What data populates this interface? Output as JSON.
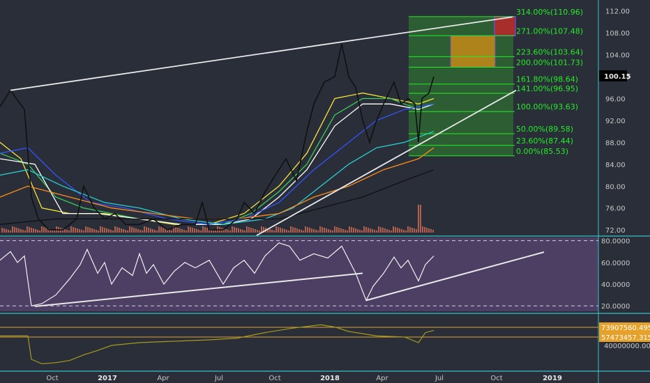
{
  "colors": {
    "background": "#2a2e39",
    "panel_border": "#36c2c8",
    "fib_green": "#22ee22",
    "rsi_fill": "#4c3f63",
    "volume": "#c56a55",
    "obv": "#a59b1e",
    "trendline": "#e9e9e9"
  },
  "chart_data": [
    {
      "type": "line",
      "panel": "price",
      "y_axis_ticks": [
        "112.00",
        "108.00",
        "104.00",
        "100.00",
        "96.00",
        "92.00",
        "88.00",
        "84.00",
        "80.00",
        "76.00",
        "72.00"
      ],
      "ylim": [
        71,
        114
      ],
      "last_price_label": "100.15",
      "fib_levels": [
        {
          "label": "314.00%(110.96)",
          "value": 110.96
        },
        {
          "label": "271.00%(107.48)",
          "value": 107.48
        },
        {
          "label": "223.60%(103.64)",
          "value": 103.64
        },
        {
          "label": "200.00%(101.73)",
          "value": 101.73
        },
        {
          "label": "161.80%(98.64)",
          "value": 98.64
        },
        {
          "label": "141.00%(96.95)",
          "value": 96.95
        },
        {
          "label": "100.00%(93.63)",
          "value": 93.63
        },
        {
          "label": "50.00%(89.58)",
          "value": 89.58
        },
        {
          "label": "23.60%(87.44)",
          "value": 87.44
        },
        {
          "label": "0.00%(85.53)",
          "value": 85.53
        }
      ],
      "price_path": [
        [
          0,
          94.5
        ],
        [
          15,
          97.5
        ],
        [
          35,
          94
        ],
        [
          45,
          78
        ],
        [
          55,
          74
        ],
        [
          70,
          72
        ],
        [
          90,
          72
        ],
        [
          110,
          74
        ],
        [
          120,
          80
        ],
        [
          135,
          76
        ],
        [
          150,
          74
        ],
        [
          165,
          75
        ],
        [
          180,
          73
        ],
        [
          200,
          73
        ],
        [
          220,
          74
        ],
        [
          240,
          72
        ],
        [
          260,
          73
        ],
        [
          280,
          73
        ],
        [
          290,
          77
        ],
        [
          300,
          72
        ],
        [
          320,
          72
        ],
        [
          340,
          74
        ],
        [
          350,
          77
        ],
        [
          365,
          75
        ],
        [
          380,
          79
        ],
        [
          395,
          82
        ],
        [
          410,
          85
        ],
        [
          425,
          81
        ],
        [
          440,
          90
        ],
        [
          450,
          95
        ],
        [
          465,
          99
        ],
        [
          480,
          100
        ],
        [
          490,
          106
        ],
        [
          500,
          100
        ],
        [
          510,
          98
        ],
        [
          520,
          92
        ],
        [
          530,
          88
        ],
        [
          540,
          92
        ],
        [
          550,
          95
        ],
        [
          565,
          99
        ],
        [
          575,
          95
        ],
        [
          585,
          96
        ],
        [
          595,
          95
        ],
        [
          600,
          88
        ],
        [
          605,
          96
        ],
        [
          615,
          97
        ],
        [
          622,
          100
        ]
      ],
      "moving_averages": [
        {
          "color": "#f5e53a",
          "path": [
            [
              0,
              88
            ],
            [
              30,
              85
            ],
            [
              60,
              76
            ],
            [
              100,
              75
            ],
            [
              150,
              75
            ],
            [
              200,
              74
            ],
            [
              250,
              73
            ],
            [
              300,
              73
            ],
            [
              350,
              75
            ],
            [
              400,
              80
            ],
            [
              440,
              86
            ],
            [
              480,
              96
            ],
            [
              520,
              97
            ],
            [
              560,
              96
            ],
            [
              600,
              95
            ],
            [
              622,
              96
            ]
          ]
        },
        {
          "color": "#3acd5a",
          "path": [
            [
              0,
              86
            ],
            [
              40,
              84
            ],
            [
              80,
              78
            ],
            [
              120,
              76
            ],
            [
              160,
              75
            ],
            [
              200,
              74
            ],
            [
              260,
              73
            ],
            [
              320,
              73
            ],
            [
              360,
              75
            ],
            [
              400,
              79
            ],
            [
              440,
              84
            ],
            [
              480,
              93
            ],
            [
              520,
              96
            ],
            [
              560,
              96
            ],
            [
              600,
              94
            ],
            [
              622,
              95
            ]
          ]
        },
        {
          "color": "#ffffff",
          "path": [
            [
              0,
              85
            ],
            [
              50,
              84
            ],
            [
              90,
              75
            ],
            [
              140,
              75
            ],
            [
              200,
              74
            ],
            [
              260,
              73
            ],
            [
              320,
              73
            ],
            [
              360,
              74
            ],
            [
              400,
              78
            ],
            [
              440,
              83
            ],
            [
              480,
              91
            ],
            [
              520,
              95
            ],
            [
              560,
              95
            ],
            [
              600,
              94
            ],
            [
              622,
              95
            ]
          ]
        },
        {
          "color": "#3355ff",
          "path": [
            [
              0,
              86
            ],
            [
              40,
              87
            ],
            [
              80,
              82
            ],
            [
              130,
              77
            ],
            [
              180,
              76
            ],
            [
              240,
              74
            ],
            [
              300,
              73
            ],
            [
              350,
              74
            ],
            [
              400,
              77
            ],
            [
              450,
              83
            ],
            [
              500,
              88
            ],
            [
              540,
              92
            ],
            [
              580,
              94
            ],
            [
              622,
              95
            ]
          ]
        },
        {
          "color": "#2ad0d0",
          "path": [
            [
              0,
              82
            ],
            [
              40,
              83
            ],
            [
              90,
              80
            ],
            [
              150,
              77
            ],
            [
              200,
              76
            ],
            [
              260,
              74
            ],
            [
              320,
              73
            ],
            [
              380,
              74
            ],
            [
              420,
              76
            ],
            [
              460,
              80
            ],
            [
              500,
              84
            ],
            [
              540,
              87
            ],
            [
              580,
              88
            ],
            [
              622,
              90
            ]
          ]
        },
        {
          "color": "#ff8c1a",
          "path": [
            [
              0,
              78
            ],
            [
              40,
              80
            ],
            [
              100,
              78
            ],
            [
              160,
              76
            ],
            [
              220,
              75
            ],
            [
              280,
              74
            ],
            [
              340,
              74
            ],
            [
              400,
              75
            ],
            [
              450,
              78
            ],
            [
              500,
              80
            ],
            [
              550,
              83
            ],
            [
              600,
              85
            ],
            [
              622,
              87
            ]
          ]
        },
        {
          "color": "#111111",
          "path": [
            [
              0,
              73
            ],
            [
              80,
              74
            ],
            [
              160,
              74
            ],
            [
              240,
              74
            ],
            [
              320,
              74
            ],
            [
              400,
              74
            ],
            [
              460,
              76
            ],
            [
              520,
              78
            ],
            [
              580,
              81
            ],
            [
              622,
              83
            ]
          ]
        }
      ],
      "trendlines": [
        {
          "path": [
            [
              15,
              97.5
            ],
            [
              735,
              110.9
            ]
          ]
        },
        {
          "path": [
            [
              368,
              71
            ],
            [
              740,
              97.5
            ]
          ]
        }
      ]
    },
    {
      "type": "line",
      "panel": "rsi",
      "y_axis_ticks": [
        "80.0000",
        "60.0000",
        "40.0000",
        "20.0000"
      ],
      "ylim": [
        15,
        83
      ],
      "rsi_path": [
        [
          0,
          62
        ],
        [
          15,
          70
        ],
        [
          25,
          60
        ],
        [
          35,
          66
        ],
        [
          45,
          20
        ],
        [
          60,
          22
        ],
        [
          80,
          30
        ],
        [
          100,
          45
        ],
        [
          115,
          58
        ],
        [
          125,
          72
        ],
        [
          140,
          50
        ],
        [
          150,
          60
        ],
        [
          160,
          40
        ],
        [
          175,
          55
        ],
        [
          190,
          48
        ],
        [
          200,
          68
        ],
        [
          210,
          50
        ],
        [
          220,
          58
        ],
        [
          235,
          40
        ],
        [
          250,
          52
        ],
        [
          265,
          60
        ],
        [
          280,
          55
        ],
        [
          300,
          62
        ],
        [
          320,
          40
        ],
        [
          335,
          55
        ],
        [
          350,
          62
        ],
        [
          365,
          50
        ],
        [
          380,
          66
        ],
        [
          400,
          78
        ],
        [
          415,
          75
        ],
        [
          430,
          62
        ],
        [
          450,
          68
        ],
        [
          470,
          64
        ],
        [
          490,
          75
        ],
        [
          510,
          50
        ],
        [
          525,
          25
        ],
        [
          535,
          38
        ],
        [
          550,
          50
        ],
        [
          565,
          65
        ],
        [
          575,
          55
        ],
        [
          585,
          62
        ],
        [
          600,
          43
        ],
        [
          610,
          58
        ],
        [
          622,
          66
        ]
      ],
      "trendlines": [
        {
          "path": [
            [
              50,
              19.5
            ],
            [
              520,
              50
            ]
          ]
        },
        {
          "path": [
            [
              525,
              25
            ],
            [
              780,
              69.5
            ]
          ]
        }
      ]
    },
    {
      "type": "line",
      "panel": "obv",
      "y_axis_ticks": [
        "40000000.0000"
      ],
      "value_labels": [
        "73907560.4953",
        "57473457.3158"
      ],
      "obv_path": [
        [
          0,
          0.62
        ],
        [
          40,
          0.62
        ],
        [
          45,
          0.2
        ],
        [
          60,
          0.12
        ],
        [
          80,
          0.14
        ],
        [
          100,
          0.18
        ],
        [
          120,
          0.28
        ],
        [
          140,
          0.36
        ],
        [
          160,
          0.45
        ],
        [
          200,
          0.5
        ],
        [
          240,
          0.52
        ],
        [
          300,
          0.55
        ],
        [
          340,
          0.58
        ],
        [
          380,
          0.68
        ],
        [
          420,
          0.76
        ],
        [
          460,
          0.82
        ],
        [
          480,
          0.78
        ],
        [
          500,
          0.7
        ],
        [
          540,
          0.62
        ],
        [
          580,
          0.6
        ],
        [
          600,
          0.5
        ],
        [
          610,
          0.68
        ],
        [
          622,
          0.72
        ]
      ]
    }
  ],
  "x_axis": {
    "labels": [
      "Oct",
      "2017",
      "Apr",
      "Jul",
      "Oct",
      "2018",
      "Apr",
      "Jul",
      "Oct",
      "2019"
    ]
  }
}
